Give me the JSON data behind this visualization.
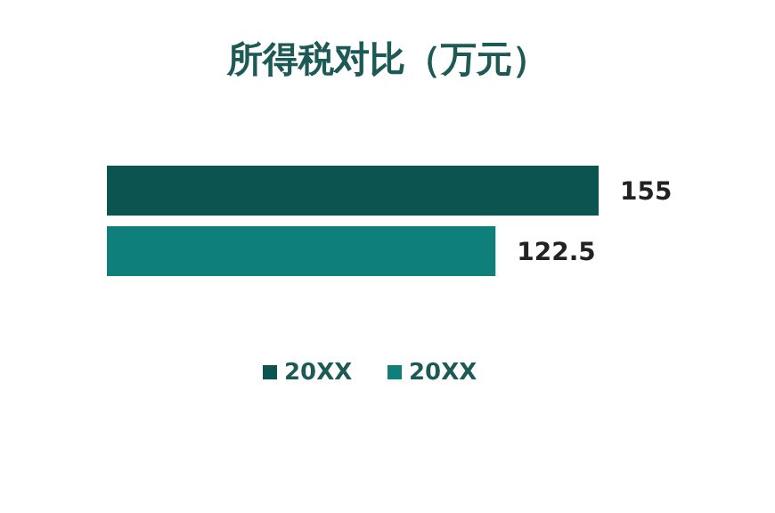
{
  "chart_data": {
    "type": "bar",
    "orientation": "horizontal",
    "title": "所得税对比（万元）",
    "categories": [
      null
    ],
    "series": [
      {
        "name": "20XX",
        "color": "#0b5450",
        "values": [
          155
        ]
      },
      {
        "name": "20XX",
        "color": "#0e7f7a",
        "values": [
          122.5
        ]
      }
    ],
    "data_labels": true,
    "legend": "bottom"
  }
}
